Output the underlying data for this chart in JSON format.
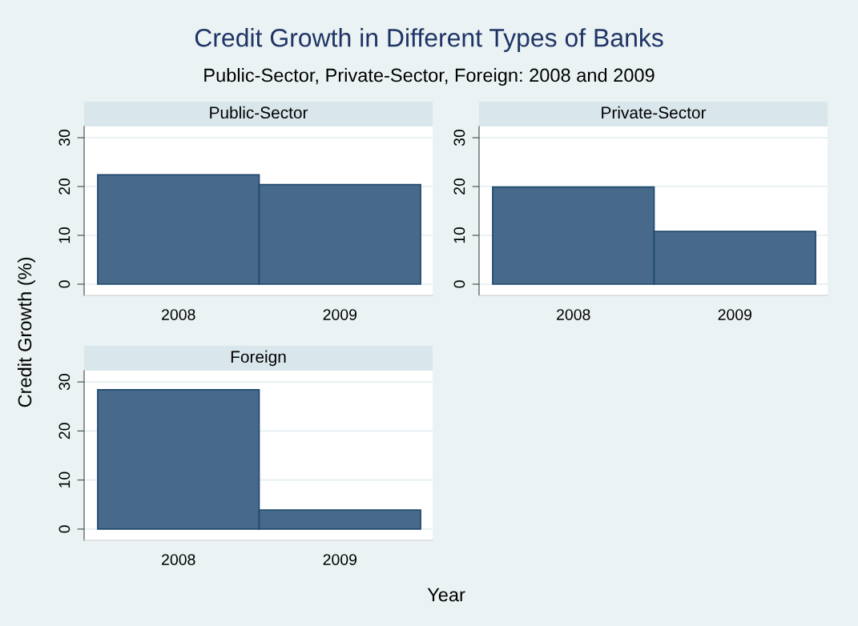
{
  "chart_data": [
    {
      "type": "other",
      "title": "Credit Growth in Different Types of Banks",
      "subtitle": "Public-Sector, Private-Sector, Foreign: 2008 and 2009",
      "xlabel": "Year",
      "ylabel": "Credit Growth (%)"
    },
    {
      "type": "bar",
      "title": "Public-Sector",
      "categories": [
        "2008",
        "2009"
      ],
      "values": [
        22.4,
        20.4
      ],
      "color": "#476a8b",
      "ylim": [
        -2.3,
        32.3
      ],
      "yticks": [
        0,
        10,
        20,
        30
      ],
      "grid": "y"
    },
    {
      "type": "bar",
      "title": "Private-Sector",
      "categories": [
        "2008",
        "2009"
      ],
      "values": [
        19.9,
        10.8
      ],
      "color": "#476a8b",
      "ylim": [
        -2.3,
        32.3
      ],
      "yticks": [
        0,
        10,
        20,
        30
      ],
      "grid": "y"
    },
    {
      "type": "bar",
      "title": "Foreign",
      "categories": [
        "2008",
        "2009"
      ],
      "values": [
        28.4,
        3.9
      ],
      "color": "#476a8b",
      "ylim": [
        -2.3,
        32.3
      ],
      "yticks": [
        0,
        10,
        20,
        30
      ],
      "grid": "y"
    }
  ]
}
